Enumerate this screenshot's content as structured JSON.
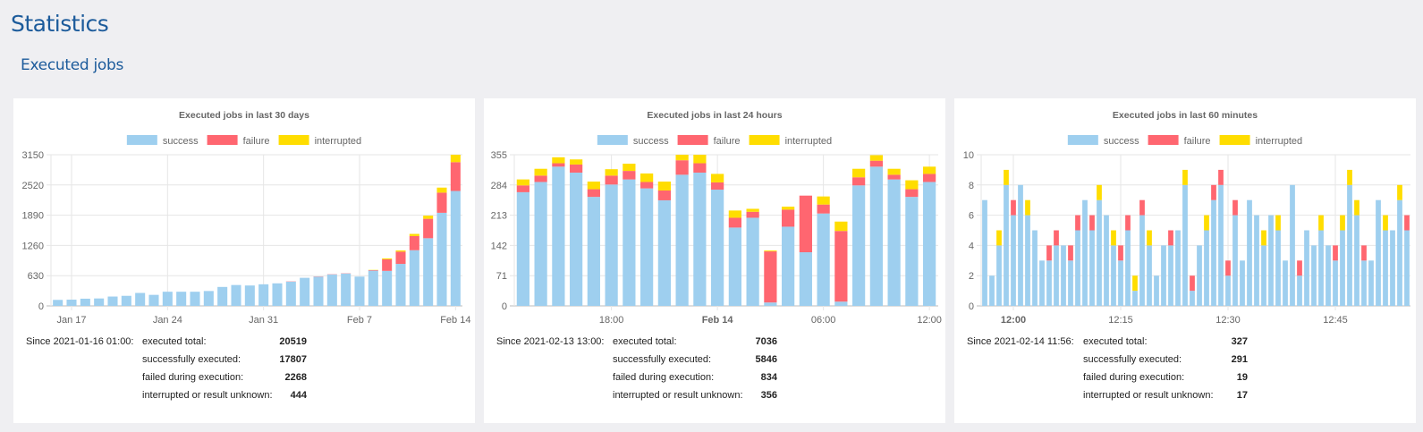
{
  "page": {
    "title": "Statistics",
    "section": "Executed jobs"
  },
  "colors": {
    "success": "#9ecfef",
    "failure": "#ff6670",
    "interrupted": "#ffdd00",
    "heading": "#1c5b9b"
  },
  "legend": [
    "success",
    "failure",
    "interrupted"
  ],
  "panels": [
    {
      "footer": {
        "since": "Since 2021-01-16 01:00:",
        "rows": [
          {
            "label": "executed total:",
            "value": "20519"
          },
          {
            "label": "successfully executed:",
            "value": "17807"
          },
          {
            "label": "failed during execution:",
            "value": "2268"
          },
          {
            "label": "interrupted or result unknown:",
            "value": "444"
          }
        ]
      }
    },
    {
      "footer": {
        "since": "Since 2021-02-13 13:00:",
        "rows": [
          {
            "label": "executed total:",
            "value": "7036"
          },
          {
            "label": "successfully executed:",
            "value": "5846"
          },
          {
            "label": "failed during execution:",
            "value": "834"
          },
          {
            "label": "interrupted or result unknown:",
            "value": "356"
          }
        ]
      }
    },
    {
      "footer": {
        "since": "Since 2021-02-14 11:56:",
        "rows": [
          {
            "label": "executed total:",
            "value": "327"
          },
          {
            "label": "successfully executed:",
            "value": "291"
          },
          {
            "label": "failed during execution:",
            "value": "19"
          },
          {
            "label": "interrupted or result unknown:",
            "value": "17"
          }
        ]
      }
    }
  ],
  "chart_data": [
    {
      "type": "bar",
      "stacked": true,
      "title": "Executed jobs in last 30 days",
      "ylim": [
        0,
        3150
      ],
      "y_ticks": [
        0,
        630,
        1260,
        1890,
        2520,
        3150
      ],
      "grid": true,
      "legend_position": "top",
      "x": [
        "Jan 16",
        "Jan 17",
        "Jan 18",
        "Jan 19",
        "Jan 20",
        "Jan 21",
        "Jan 22",
        "Jan 23",
        "Jan 24",
        "Jan 25",
        "Jan 26",
        "Jan 27",
        "Jan 28",
        "Jan 29",
        "Jan 30",
        "Jan 31",
        "Feb 1",
        "Feb 2",
        "Feb 3",
        "Feb 4",
        "Feb 5",
        "Feb 6",
        "Feb 7",
        "Feb 8",
        "Feb 9",
        "Feb 10",
        "Feb 11",
        "Feb 12",
        "Feb 13",
        "Feb 14"
      ],
      "x_ticks": [
        {
          "label": "Jan 17",
          "at": "Jan 17"
        },
        {
          "label": "Jan 24",
          "at": "Jan 24"
        },
        {
          "label": "Jan 31",
          "at": "Jan 31"
        },
        {
          "label": "Feb 7",
          "at": "Feb 7"
        },
        {
          "label": "Feb 14",
          "at": "Feb 14"
        }
      ],
      "series": [
        {
          "name": "success",
          "values": [
            125,
            130,
            150,
            155,
            195,
            210,
            270,
            230,
            295,
            295,
            295,
            310,
            395,
            435,
            425,
            450,
            470,
            505,
            585,
            610,
            655,
            675,
            610,
            735,
            730,
            875,
            1160,
            1410,
            1940,
            2395
          ]
        },
        {
          "name": "failure",
          "values": [
            0,
            0,
            0,
            0,
            0,
            0,
            0,
            0,
            0,
            0,
            0,
            0,
            0,
            0,
            0,
            0,
            0,
            5,
            0,
            5,
            5,
            5,
            0,
            10,
            240,
            255,
            295,
            405,
            420,
            600
          ]
        },
        {
          "name": "interrupted",
          "values": [
            0,
            0,
            0,
            0,
            0,
            0,
            0,
            0,
            0,
            0,
            0,
            0,
            0,
            0,
            0,
            0,
            0,
            0,
            0,
            0,
            0,
            0,
            0,
            5,
            20,
            25,
            45,
            65,
            105,
            155
          ]
        }
      ]
    },
    {
      "type": "bar",
      "stacked": true,
      "title": "Executed jobs in last 24 hours",
      "ylim": [
        0,
        355
      ],
      "y_ticks": [
        0,
        71,
        142,
        213,
        284,
        355
      ],
      "grid": true,
      "legend_position": "top",
      "x": [
        "13:00",
        "14:00",
        "15:00",
        "16:00",
        "17:00",
        "18:00",
        "19:00",
        "20:00",
        "21:00",
        "22:00",
        "23:00",
        "00:00",
        "01:00",
        "02:00",
        "03:00",
        "04:00",
        "05:00",
        "06:00",
        "07:00",
        "08:00",
        "09:00",
        "10:00",
        "11:00",
        "12:00"
      ],
      "x_ticks": [
        {
          "label": "18:00",
          "at": "18:00"
        },
        {
          "label": "Feb 14",
          "at": "00:00",
          "bold": true
        },
        {
          "label": "06:00",
          "at": "06:00"
        },
        {
          "label": "12:00",
          "at": "12:00"
        }
      ],
      "series": [
        {
          "name": "success",
          "values": [
            267,
            291,
            327,
            313,
            256,
            285,
            297,
            276,
            248,
            308,
            313,
            273,
            184,
            207,
            8,
            186,
            126,
            217,
            10,
            283,
            327,
            297,
            256,
            291
          ]
        },
        {
          "name": "failure",
          "values": [
            16,
            15,
            8,
            19,
            18,
            21,
            20,
            15,
            23,
            34,
            22,
            17,
            23,
            14,
            120,
            40,
            133,
            21,
            166,
            19,
            14,
            11,
            18,
            19
          ]
        },
        {
          "name": "interrupted",
          "values": [
            14,
            16,
            14,
            12,
            18,
            15,
            17,
            20,
            21,
            13,
            20,
            20,
            17,
            7,
            2,
            7,
            0,
            19,
            22,
            20,
            13,
            14,
            21,
            17
          ]
        }
      ]
    },
    {
      "type": "bar",
      "stacked": true,
      "title": "Executed jobs in last 60 minutes",
      "ylim": [
        0,
        10
      ],
      "y_ticks": [
        0,
        2,
        4,
        6,
        8,
        10
      ],
      "grid": true,
      "legend_position": "top",
      "x": [
        "11:56",
        "11:57",
        "11:58",
        "11:59",
        "12:00",
        "12:01",
        "12:02",
        "12:03",
        "12:04",
        "12:05",
        "12:06",
        "12:07",
        "12:08",
        "12:09",
        "12:10",
        "12:11",
        "12:12",
        "12:13",
        "12:14",
        "12:15",
        "12:16",
        "12:17",
        "12:18",
        "12:19",
        "12:20",
        "12:21",
        "12:22",
        "12:23",
        "12:24",
        "12:25",
        "12:26",
        "12:27",
        "12:28",
        "12:29",
        "12:30",
        "12:31",
        "12:32",
        "12:33",
        "12:34",
        "12:35",
        "12:36",
        "12:37",
        "12:38",
        "12:39",
        "12:40",
        "12:41",
        "12:42",
        "12:43",
        "12:44",
        "12:45",
        "12:46",
        "12:47",
        "12:48",
        "12:49",
        "12:50",
        "12:51",
        "12:52",
        "12:53",
        "12:54",
        "12:55"
      ],
      "x_ticks": [
        {
          "label": "12:00",
          "at": "12:00",
          "bold": true
        },
        {
          "label": "12:15",
          "at": "12:15"
        },
        {
          "label": "12:30",
          "at": "12:30"
        },
        {
          "label": "12:45",
          "at": "12:45"
        }
      ],
      "series": [
        {
          "name": "success",
          "values": [
            7,
            2,
            4,
            8,
            6,
            8,
            6,
            5,
            3,
            3,
            4,
            4,
            3,
            5,
            7,
            5,
            7,
            6,
            4,
            3,
            5,
            1,
            6,
            4,
            2,
            4,
            4,
            5,
            8,
            1,
            4,
            5,
            7,
            8,
            2,
            6,
            3,
            7,
            6,
            4,
            6,
            5,
            3,
            8,
            2,
            5,
            4,
            5,
            4,
            3,
            5,
            8,
            6,
            3,
            3,
            7,
            5,
            5,
            7,
            5
          ]
        },
        {
          "name": "failure",
          "values": [
            0,
            0,
            0,
            0,
            1,
            0,
            0,
            0,
            0,
            1,
            1,
            0,
            1,
            1,
            0,
            1,
            0,
            0,
            0,
            1,
            1,
            0,
            1,
            0,
            0,
            0,
            1,
            0,
            0,
            1,
            0,
            0,
            1,
            1,
            1,
            1,
            0,
            0,
            0,
            0,
            0,
            0,
            0,
            0,
            1,
            0,
            0,
            0,
            0,
            1,
            0,
            0,
            0,
            1,
            0,
            0,
            0,
            0,
            0,
            1
          ]
        },
        {
          "name": "interrupted",
          "values": [
            0,
            0,
            1,
            1,
            0,
            0,
            1,
            0,
            0,
            0,
            0,
            0,
            0,
            0,
            0,
            0,
            1,
            0,
            1,
            0,
            0,
            1,
            0,
            1,
            0,
            0,
            0,
            0,
            1,
            0,
            0,
            1,
            0,
            0,
            0,
            0,
            0,
            0,
            0,
            1,
            0,
            1,
            0,
            0,
            0,
            0,
            0,
            1,
            0,
            0,
            1,
            1,
            1,
            0,
            0,
            0,
            1,
            0,
            1,
            0
          ]
        }
      ]
    }
  ]
}
